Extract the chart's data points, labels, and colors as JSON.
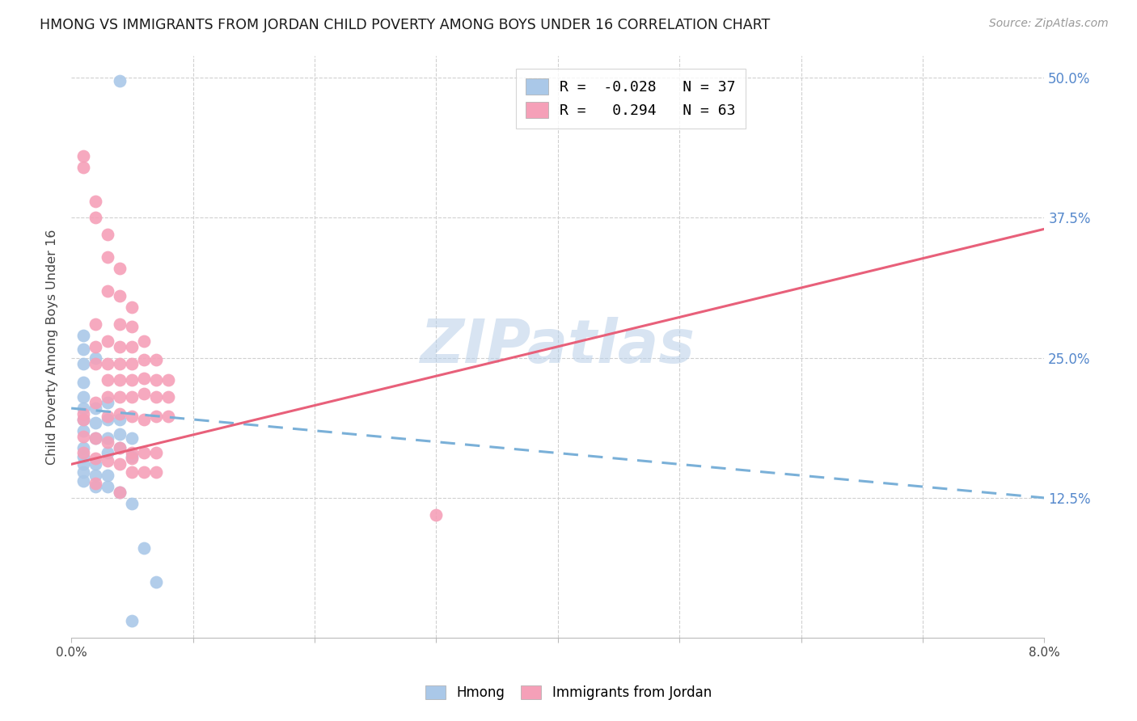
{
  "title": "HMONG VS IMMIGRANTS FROM JORDAN CHILD POVERTY AMONG BOYS UNDER 16 CORRELATION CHART",
  "source": "Source: ZipAtlas.com",
  "ylabel": "Child Poverty Among Boys Under 16",
  "xmin": 0.0,
  "xmax": 0.08,
  "ymin": 0.0,
  "ymax": 0.52,
  "hmong_color": "#aac8e8",
  "jordan_color": "#f5a0b8",
  "hmong_line_color": "#7ab0d8",
  "jordan_line_color": "#e8607a",
  "hmong_R": -0.028,
  "hmong_N": 37,
  "jordan_R": 0.294,
  "jordan_N": 63,
  "watermark": "ZIPatlas",
  "hmong_line_x": [
    0.0,
    0.08
  ],
  "hmong_line_y": [
    0.205,
    0.125
  ],
  "jordan_line_x": [
    0.0,
    0.08
  ],
  "jordan_line_y": [
    0.155,
    0.365
  ],
  "hmong_scatter_x": [
    0.004,
    0.001,
    0.001,
    0.001,
    0.001,
    0.001,
    0.001,
    0.001,
    0.001,
    0.002,
    0.002,
    0.002,
    0.002,
    0.003,
    0.003,
    0.003,
    0.003,
    0.004,
    0.004,
    0.004,
    0.005,
    0.005,
    0.001,
    0.001,
    0.001,
    0.001,
    0.001,
    0.002,
    0.002,
    0.002,
    0.003,
    0.003,
    0.004,
    0.005,
    0.006,
    0.007,
    0.005
  ],
  "hmong_scatter_y": [
    0.497,
    0.27,
    0.258,
    0.245,
    0.228,
    0.215,
    0.205,
    0.195,
    0.185,
    0.25,
    0.205,
    0.192,
    0.178,
    0.21,
    0.195,
    0.178,
    0.165,
    0.195,
    0.182,
    0.17,
    0.178,
    0.162,
    0.17,
    0.162,
    0.155,
    0.148,
    0.14,
    0.155,
    0.145,
    0.135,
    0.145,
    0.135,
    0.13,
    0.12,
    0.08,
    0.05,
    0.015
  ],
  "jordan_scatter_x": [
    0.001,
    0.001,
    0.001,
    0.002,
    0.002,
    0.002,
    0.002,
    0.002,
    0.002,
    0.003,
    0.003,
    0.003,
    0.003,
    0.003,
    0.003,
    0.003,
    0.003,
    0.004,
    0.004,
    0.004,
    0.004,
    0.004,
    0.004,
    0.004,
    0.004,
    0.005,
    0.005,
    0.005,
    0.005,
    0.005,
    0.005,
    0.005,
    0.005,
    0.006,
    0.006,
    0.006,
    0.006,
    0.006,
    0.006,
    0.007,
    0.007,
    0.007,
    0.007,
    0.007,
    0.007,
    0.008,
    0.008,
    0.008,
    0.001,
    0.001,
    0.001,
    0.002,
    0.002,
    0.003,
    0.003,
    0.004,
    0.004,
    0.005,
    0.005,
    0.006,
    0.002,
    0.004,
    0.03
  ],
  "jordan_scatter_y": [
    0.43,
    0.42,
    0.2,
    0.39,
    0.375,
    0.28,
    0.26,
    0.245,
    0.21,
    0.36,
    0.34,
    0.31,
    0.265,
    0.245,
    0.23,
    0.215,
    0.198,
    0.33,
    0.305,
    0.28,
    0.26,
    0.245,
    0.23,
    0.215,
    0.2,
    0.295,
    0.278,
    0.26,
    0.245,
    0.23,
    0.215,
    0.198,
    0.165,
    0.265,
    0.248,
    0.232,
    0.218,
    0.195,
    0.165,
    0.248,
    0.23,
    0.215,
    0.198,
    0.165,
    0.148,
    0.23,
    0.215,
    0.198,
    0.195,
    0.18,
    0.165,
    0.178,
    0.16,
    0.175,
    0.158,
    0.17,
    0.155,
    0.16,
    0.148,
    0.148,
    0.138,
    0.13,
    0.11
  ]
}
